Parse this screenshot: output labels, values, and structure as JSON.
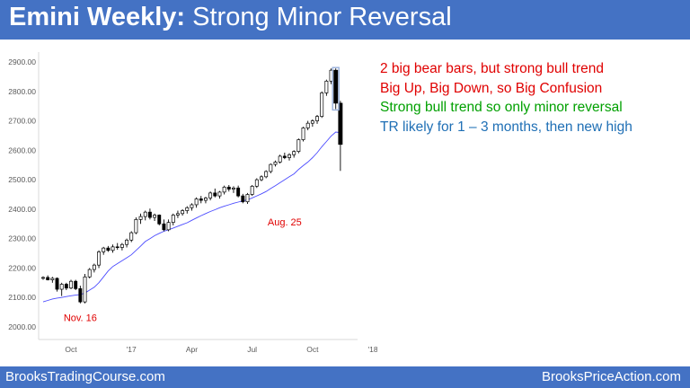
{
  "header": {
    "title_bold": "Emini Weekly:",
    "title_rest": " Strong Minor Reversal"
  },
  "colors": {
    "header_bg": "#4472c4",
    "note_red": "#e00000",
    "note_green": "#00a000",
    "note_blue": "#1f6fb5",
    "annotation_red": "#e00000",
    "moving_average": "#4b4bff",
    "bull_candle": "#ffffff",
    "bear_candle": "#000000"
  },
  "notes": [
    {
      "text": "2 big bear bars, but strong bull trend",
      "color": "#e00000"
    },
    {
      "text": "Big Up, Big Down, so Big Confusion",
      "color": "#e00000"
    },
    {
      "text": "Strong bull trend so only minor reversal",
      "color": "#00a000"
    },
    {
      "text": "TR likely for 1 – 3 months, then new high",
      "color": "#1f6fb5"
    }
  ],
  "chart_data": {
    "type": "candlestick",
    "title": "",
    "ylim": [
      1950,
      2900
    ],
    "yticks": [
      2000,
      2100,
      2200,
      2300,
      2400,
      2500,
      2600,
      2700,
      2800,
      2900
    ],
    "ytick_labels": [
      "2000.00",
      "2100.00",
      "2200.00",
      "2300.00",
      "2400.00",
      "2500.00",
      "2600.00",
      "2700.00",
      "2800.00",
      "2900.00"
    ],
    "xtick_labels": [
      {
        "label": "Oct",
        "week": 6
      },
      {
        "label": "'17",
        "week": 19
      },
      {
        "label": "Apr",
        "week": 32
      },
      {
        "label": "Jul",
        "week": 45
      },
      {
        "label": "Oct",
        "week": 58
      },
      {
        "label": "'18",
        "week": 71
      }
    ],
    "annotations": [
      {
        "text": "Nov. 16",
        "week": 8,
        "price": 2020
      },
      {
        "text": "Aug. 25",
        "week": 52,
        "price": 2345
      }
    ],
    "candles": [
      [
        2165,
        2172,
        2160,
        2168
      ],
      [
        2168,
        2175,
        2158,
        2160
      ],
      [
        2160,
        2170,
        2150,
        2165
      ],
      [
        2165,
        2168,
        2120,
        2128
      ],
      [
        2128,
        2150,
        2105,
        2145
      ],
      [
        2145,
        2150,
        2125,
        2132
      ],
      [
        2132,
        2160,
        2128,
        2155
      ],
      [
        2155,
        2160,
        2125,
        2130
      ],
      [
        2130,
        2140,
        2080,
        2085
      ],
      [
        2085,
        2180,
        2080,
        2170
      ],
      [
        2170,
        2200,
        2165,
        2195
      ],
      [
        2195,
        2215,
        2185,
        2210
      ],
      [
        2210,
        2260,
        2200,
        2255
      ],
      [
        2255,
        2272,
        2245,
        2268
      ],
      [
        2268,
        2275,
        2255,
        2260
      ],
      [
        2260,
        2280,
        2252,
        2272
      ],
      [
        2272,
        2285,
        2262,
        2270
      ],
      [
        2270,
        2285,
        2260,
        2280
      ],
      [
        2280,
        2300,
        2270,
        2295
      ],
      [
        2295,
        2325,
        2288,
        2320
      ],
      [
        2320,
        2372,
        2315,
        2365
      ],
      [
        2365,
        2385,
        2350,
        2375
      ],
      [
        2375,
        2395,
        2362,
        2390
      ],
      [
        2390,
        2402,
        2365,
        2372
      ],
      [
        2372,
        2385,
        2360,
        2380
      ],
      [
        2380,
        2382,
        2345,
        2350
      ],
      [
        2350,
        2365,
        2325,
        2330
      ],
      [
        2330,
        2365,
        2325,
        2355
      ],
      [
        2355,
        2385,
        2345,
        2380
      ],
      [
        2380,
        2395,
        2370,
        2385
      ],
      [
        2385,
        2400,
        2378,
        2395
      ],
      [
        2395,
        2410,
        2385,
        2405
      ],
      [
        2405,
        2420,
        2395,
        2415
      ],
      [
        2415,
        2440,
        2405,
        2435
      ],
      [
        2435,
        2445,
        2420,
        2430
      ],
      [
        2430,
        2442,
        2420,
        2438
      ],
      [
        2438,
        2460,
        2430,
        2455
      ],
      [
        2455,
        2470,
        2440,
        2445
      ],
      [
        2445,
        2462,
        2436,
        2458
      ],
      [
        2458,
        2480,
        2450,
        2475
      ],
      [
        2475,
        2482,
        2460,
        2468
      ],
      [
        2468,
        2478,
        2455,
        2472
      ],
      [
        2472,
        2480,
        2440,
        2445
      ],
      [
        2445,
        2452,
        2420,
        2425
      ],
      [
        2425,
        2455,
        2418,
        2450
      ],
      [
        2450,
        2482,
        2445,
        2478
      ],
      [
        2478,
        2505,
        2472,
        2500
      ],
      [
        2500,
        2515,
        2495,
        2510
      ],
      [
        2510,
        2532,
        2505,
        2528
      ],
      [
        2528,
        2555,
        2522,
        2552
      ],
      [
        2552,
        2565,
        2545,
        2560
      ],
      [
        2560,
        2585,
        2555,
        2580
      ],
      [
        2580,
        2592,
        2570,
        2575
      ],
      [
        2575,
        2590,
        2565,
        2585
      ],
      [
        2585,
        2600,
        2575,
        2596
      ],
      [
        2596,
        2640,
        2590,
        2636
      ],
      [
        2636,
        2680,
        2630,
        2676
      ],
      [
        2676,
        2700,
        2668,
        2692
      ],
      [
        2692,
        2705,
        2680,
        2700
      ],
      [
        2700,
        2720,
        2690,
        2715
      ],
      [
        2715,
        2800,
        2710,
        2795
      ],
      [
        2795,
        2840,
        2785,
        2835
      ],
      [
        2835,
        2878,
        2825,
        2872
      ],
      [
        2872,
        2878,
        2740,
        2760
      ],
      [
        2760,
        2768,
        2530,
        2620
      ]
    ],
    "moving_average": [
      2085,
      2090,
      2095,
      2098,
      2100,
      2103,
      2106,
      2108,
      2110,
      2115,
      2125,
      2135,
      2150,
      2170,
      2190,
      2205,
      2215,
      2225,
      2235,
      2245,
      2260,
      2275,
      2290,
      2300,
      2310,
      2318,
      2325,
      2330,
      2336,
      2342,
      2348,
      2354,
      2362,
      2370,
      2378,
      2385,
      2392,
      2398,
      2405,
      2410,
      2415,
      2420,
      2424,
      2428,
      2432,
      2438,
      2445,
      2452,
      2460,
      2470,
      2480,
      2490,
      2500,
      2510,
      2520,
      2535,
      2548,
      2560,
      2575,
      2592,
      2612,
      2630,
      2648,
      2662,
      2660
    ]
  },
  "footer": {
    "left": "BrooksTradingCourse.com",
    "right": "BrooksPriceAction.com"
  }
}
